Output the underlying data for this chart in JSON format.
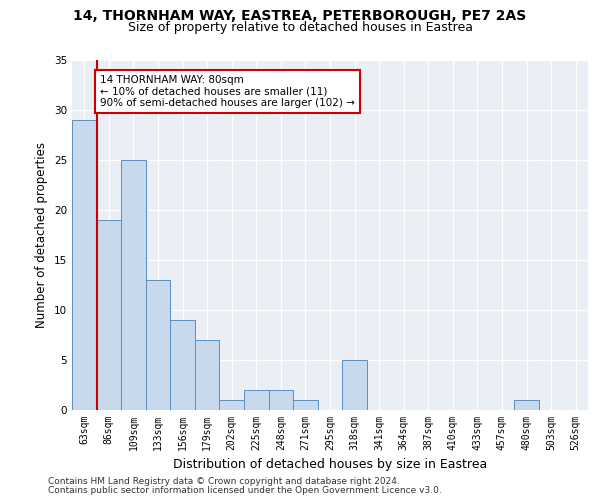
{
  "title1": "14, THORNHAM WAY, EASTREA, PETERBOROUGH, PE7 2AS",
  "title2": "Size of property relative to detached houses in Eastrea",
  "xlabel": "Distribution of detached houses by size in Eastrea",
  "ylabel": "Number of detached properties",
  "categories": [
    "63sqm",
    "86sqm",
    "109sqm",
    "133sqm",
    "156sqm",
    "179sqm",
    "202sqm",
    "225sqm",
    "248sqm",
    "271sqm",
    "295sqm",
    "318sqm",
    "341sqm",
    "364sqm",
    "387sqm",
    "410sqm",
    "433sqm",
    "457sqm",
    "480sqm",
    "503sqm",
    "526sqm"
  ],
  "values": [
    29,
    19,
    25,
    13,
    9,
    7,
    1,
    2,
    2,
    1,
    0,
    5,
    0,
    0,
    0,
    0,
    0,
    0,
    1,
    0,
    0
  ],
  "bar_color": "#c9d9ed",
  "bar_edge_color": "#5a8fc0",
  "vline_color": "#cc0000",
  "annotation_text": "14 THORNHAM WAY: 80sqm\n← 10% of detached houses are smaller (11)\n90% of semi-detached houses are larger (102) →",
  "annotation_box_color": "white",
  "annotation_box_edge": "#cc0000",
  "ylim": [
    0,
    35
  ],
  "yticks": [
    0,
    5,
    10,
    15,
    20,
    25,
    30,
    35
  ],
  "background_color": "#eaeef5",
  "footer1": "Contains HM Land Registry data © Crown copyright and database right 2024.",
  "footer2": "Contains public sector information licensed under the Open Government Licence v3.0.",
  "title_fontsize": 10,
  "subtitle_fontsize": 9,
  "axis_label_fontsize": 8.5,
  "tick_fontsize": 7,
  "footer_fontsize": 6.5,
  "annotation_fontsize": 7.5
}
